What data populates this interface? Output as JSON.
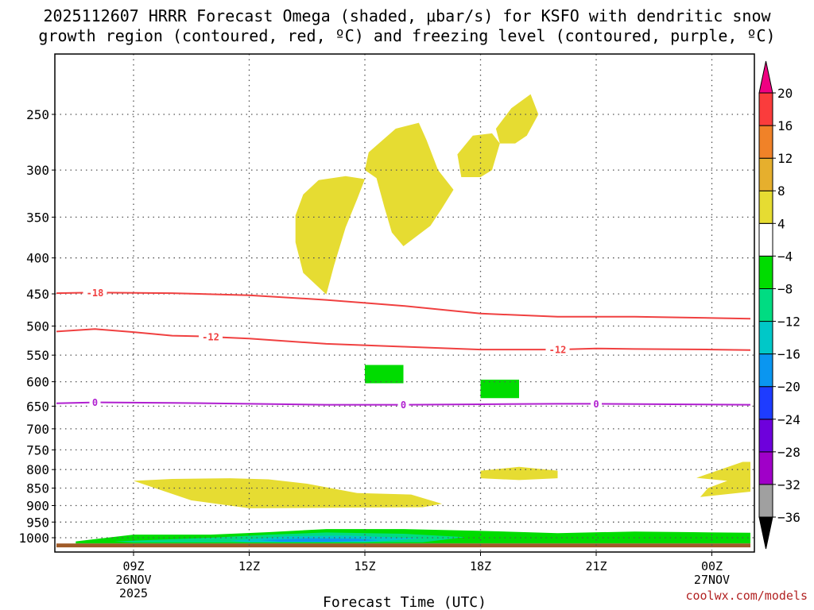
{
  "chart_data": {
    "type": "time-height contour",
    "title_line1": "2025112607 HRRR Forecast Omega (shaded, μbar/s) for KSFO with dendritic snow",
    "title_line2": "growth region (contoured, red, ºC) and freezing level (contoured, purple, ºC)",
    "xlabel": "Forecast Time (UTC)",
    "credit": "coolwx.com/models",
    "x_range_hours": [
      7,
      25
    ],
    "x_ticks": [
      {
        "hour": 9,
        "label": "09Z",
        "label2": "26NOV",
        "label3": "2025"
      },
      {
        "hour": 12,
        "label": "12Z"
      },
      {
        "hour": 15,
        "label": "15Z"
      },
      {
        "hour": 18,
        "label": "18Z"
      },
      {
        "hour": 21,
        "label": "21Z"
      },
      {
        "hour": 24,
        "label": "00Z",
        "label2": "27NOV"
      }
    ],
    "y_ticks_hPa": [
      250,
      300,
      350,
      400,
      450,
      500,
      550,
      600,
      650,
      700,
      750,
      800,
      850,
      900,
      950,
      1000
    ],
    "y_range_hPa": [
      200,
      1030
    ],
    "colorbar": {
      "levels": [
        -36,
        -32,
        -28,
        -24,
        -20,
        -16,
        -12,
        -8,
        -4,
        4,
        8,
        12,
        16,
        20
      ],
      "labels": [
        "20",
        "16",
        "12",
        "8",
        "4",
        "−4",
        "−8",
        "−12",
        "−16",
        "−20",
        "−24",
        "−28",
        "−32",
        "−36"
      ],
      "colors": [
        "#000000",
        "#a0a0a0",
        "#a000c8",
        "#6e00dc",
        "#1e3cff",
        "#0a96f0",
        "#00c8c8",
        "#00dc82",
        "#00dc00",
        "#ffffff",
        "#e6dc32",
        "#e6af2d",
        "#f08228",
        "#fa3c3c",
        "#f00082"
      ]
    },
    "contours": [
      {
        "name": "-18 °C",
        "label": "-18",
        "color": "#f04040",
        "points": [
          [
            7,
            449
          ],
          [
            8,
            448
          ],
          [
            10,
            449
          ],
          [
            12,
            452
          ],
          [
            14,
            459
          ],
          [
            16,
            468
          ],
          [
            18,
            480
          ],
          [
            20,
            485
          ],
          [
            22,
            485
          ],
          [
            24,
            487
          ],
          [
            25,
            488
          ]
        ],
        "label_hours": [
          8
        ]
      },
      {
        "name": "-12 °C",
        "label": "-12",
        "color": "#f04040",
        "points": [
          [
            7,
            509
          ],
          [
            8,
            505
          ],
          [
            9,
            510
          ],
          [
            10,
            516
          ],
          [
            10.7,
            517
          ],
          [
            12,
            521
          ],
          [
            14,
            530
          ],
          [
            16,
            535
          ],
          [
            18,
            540
          ],
          [
            20,
            540
          ],
          [
            21,
            538
          ],
          [
            22,
            539
          ],
          [
            24,
            540
          ],
          [
            25,
            541
          ]
        ],
        "label_hours": [
          11
        ]
      },
      {
        "name": "-12 °C (right label)",
        "label": "-12",
        "color": "#f04040",
        "points": [],
        "label_at": [
          [
            20,
            540
          ]
        ]
      },
      {
        "name": "0 °C freezing level",
        "label": "0",
        "color": "#b020d0",
        "points": [
          [
            7,
            644
          ],
          [
            8,
            642
          ],
          [
            10,
            643
          ],
          [
            12,
            645
          ],
          [
            14,
            647
          ],
          [
            16,
            647
          ],
          [
            18,
            646
          ],
          [
            20,
            645
          ],
          [
            21,
            645
          ],
          [
            23,
            646
          ],
          [
            25,
            647
          ]
        ],
        "label_hours": [
          8,
          16,
          21
        ]
      }
    ],
    "shaded_regions": [
      {
        "name": "upward omega 4-8 (upper A)",
        "value": "4 to 8",
        "color": "#e6dc32",
        "polygon": [
          [
            14.0,
            451
          ],
          [
            13.4,
            420
          ],
          [
            13.2,
            380
          ],
          [
            13.2,
            348
          ],
          [
            13.4,
            325
          ],
          [
            13.8,
            310
          ],
          [
            14.5,
            306
          ],
          [
            15.0,
            309
          ],
          [
            14.8,
            330
          ],
          [
            14.5,
            362
          ],
          [
            14.2,
            410
          ]
        ]
      },
      {
        "name": "upward omega 4-8 (upper B)",
        "value": "4 to 8",
        "color": "#e6dc32",
        "polygon": [
          [
            16.0,
            385
          ],
          [
            15.7,
            368
          ],
          [
            15.5,
            338
          ],
          [
            15.3,
            308
          ],
          [
            15.0,
            300
          ],
          [
            15.1,
            283
          ],
          [
            15.8,
            262
          ],
          [
            16.4,
            257
          ],
          [
            16.6,
            272
          ],
          [
            16.9,
            300
          ],
          [
            17.3,
            320
          ],
          [
            17.0,
            340
          ],
          [
            16.7,
            360
          ]
        ]
      },
      {
        "name": "upward omega 4-8 (upper C)",
        "value": "4 to 8",
        "color": "#e6dc32",
        "polygon": [
          [
            17.5,
            307
          ],
          [
            17.4,
            285
          ],
          [
            17.8,
            268
          ],
          [
            18.3,
            266
          ],
          [
            18.5,
            275
          ],
          [
            18.3,
            300
          ],
          [
            18.0,
            307
          ]
        ]
      },
      {
        "name": "upward omega 4-8 (upper D)",
        "value": "4 to 8",
        "color": "#e6dc32",
        "polygon": [
          [
            18.5,
            275
          ],
          [
            18.4,
            262
          ],
          [
            18.8,
            245
          ],
          [
            19.3,
            234
          ],
          [
            19.5,
            250
          ],
          [
            19.2,
            268
          ],
          [
            18.9,
            275
          ]
        ]
      },
      {
        "name": "upward omega 4-8 (low left)",
        "value": "4 to 8",
        "color": "#e6dc32",
        "polygon": [
          [
            9.0,
            830
          ],
          [
            10,
            825
          ],
          [
            11.5,
            823
          ],
          [
            12.5,
            826
          ],
          [
            13.5,
            838
          ],
          [
            14.8,
            864
          ],
          [
            16.2,
            868
          ],
          [
            17.0,
            895
          ],
          [
            16.5,
            905
          ],
          [
            15,
            906
          ],
          [
            12,
            908
          ],
          [
            10.5,
            885
          ]
        ]
      },
      {
        "name": "upward omega 4-8 (low mid)",
        "value": "4 to 8",
        "color": "#e6dc32",
        "polygon": [
          [
            18.0,
            803
          ],
          [
            19,
            793
          ],
          [
            20.0,
            803
          ],
          [
            20.0,
            823
          ],
          [
            19,
            828
          ],
          [
            18.0,
            823
          ]
        ]
      },
      {
        "name": "upward omega 4-8 (low right)",
        "value": "4 to 8",
        "color": "#e6dc32",
        "polygon": [
          [
            24.8,
            780
          ],
          [
            25,
            780
          ],
          [
            25,
            860
          ],
          [
            23.7,
            875
          ],
          [
            23.9,
            850
          ],
          [
            24.4,
            830
          ],
          [
            23.6,
            822
          ]
        ]
      },
      {
        "name": "downward omega -4 to -8 (550)",
        "value": "-4 to -8",
        "color": "#00dc00",
        "polygon": [
          [
            15.0,
            568
          ],
          [
            16.0,
            568
          ],
          [
            16.0,
            603
          ],
          [
            15.0,
            603
          ]
        ]
      },
      {
        "name": "downward omega -4 to -8 (620)",
        "value": "-4 to -8",
        "color": "#00dc00",
        "polygon": [
          [
            18.0,
            596
          ],
          [
            19.0,
            596
          ],
          [
            19.0,
            633
          ],
          [
            18.0,
            633
          ]
        ]
      },
      {
        "name": "near-surface sinking -4 to -8",
        "value": "-4 to -8",
        "color": "#00dc00",
        "polygon": [
          [
            7.5,
            1012
          ],
          [
            9,
            990
          ],
          [
            11,
            990
          ],
          [
            12.5,
            982
          ],
          [
            14,
            972
          ],
          [
            16,
            972
          ],
          [
            18,
            978
          ],
          [
            20,
            985
          ],
          [
            22,
            980
          ],
          [
            23.5,
            982
          ],
          [
            25,
            984
          ],
          [
            25,
            1019
          ],
          [
            7.5,
            1019
          ]
        ]
      },
      {
        "name": "near-surface sinking -8 to -12",
        "value": "-8 to -12",
        "color": "#00dc82",
        "polygon": [
          [
            8.5,
            1012
          ],
          [
            11,
            1000
          ],
          [
            12.5,
            990
          ],
          [
            14,
            983
          ],
          [
            16,
            987
          ],
          [
            17.6,
            998
          ],
          [
            16.5,
            1015
          ],
          [
            9,
            1016
          ]
        ]
      },
      {
        "name": "near-surface sinking -12 to -16",
        "value": "-12 to -16",
        "color": "#00c8c8",
        "polygon": [
          [
            11.5,
            1010
          ],
          [
            13,
            995
          ],
          [
            14.5,
            993
          ],
          [
            16.5,
            1002
          ],
          [
            15,
            1015
          ],
          [
            12,
            1015
          ]
        ]
      },
      {
        "name": "near-surface sinking -16 to -20",
        "value": "-16 to -20",
        "color": "#0a96f0",
        "polygon": [
          [
            12.3,
            1008
          ],
          [
            13.5,
            1002
          ],
          [
            14.8,
            1003
          ],
          [
            15.4,
            1009
          ],
          [
            14,
            1014
          ],
          [
            12.8,
            1013
          ]
        ]
      },
      {
        "name": "surface terrain",
        "value": "below ground",
        "color": "#a05a28",
        "polygon": [
          [
            7,
            1019
          ],
          [
            25,
            1019
          ],
          [
            25,
            1032
          ],
          [
            7,
            1032
          ]
        ]
      }
    ]
  }
}
